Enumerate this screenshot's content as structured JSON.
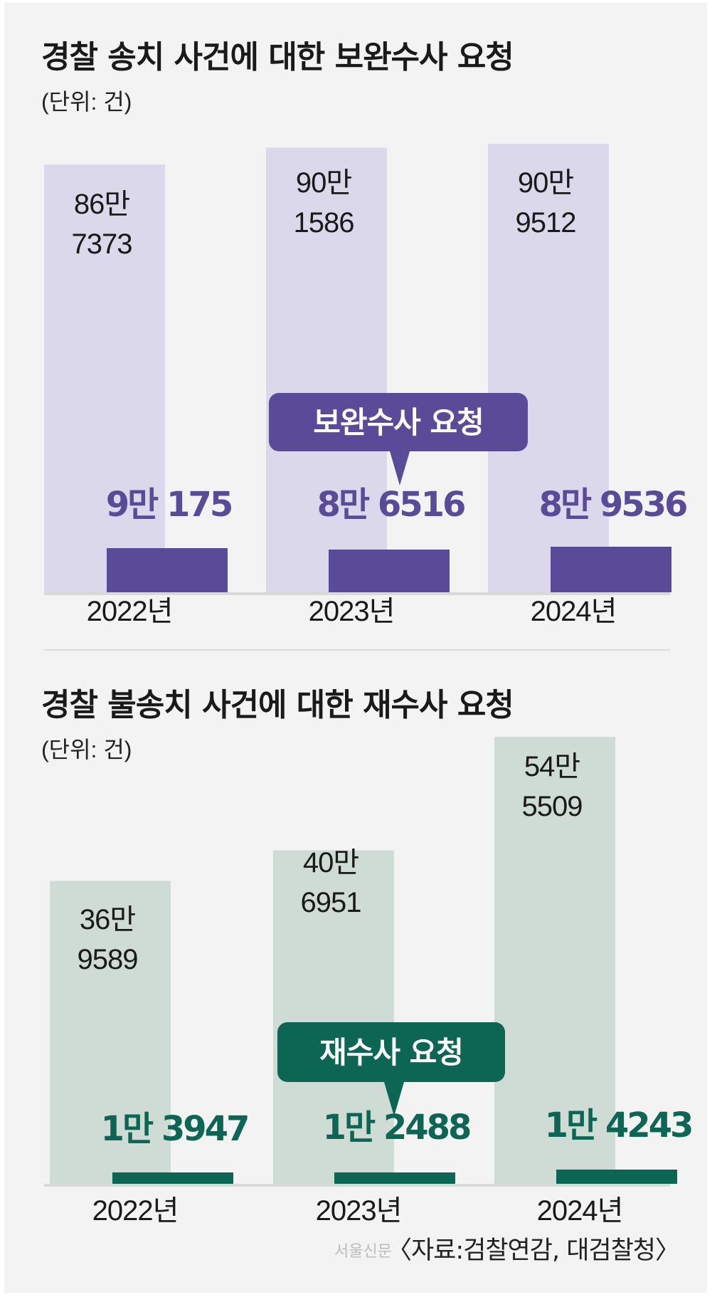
{
  "chart_data": [
    {
      "type": "bar",
      "title": "경찰 송치 사건에 대한 보완수사 요청",
      "unit_label": "(단위: 건)",
      "categories": [
        "2022년",
        "2023년",
        "2024년"
      ],
      "series": [
        {
          "values": [
            867373,
            901586,
            909512
          ],
          "labels": [
            [
              "86만",
              "7373"
            ],
            [
              "90만",
              "1586"
            ],
            [
              "90만",
              "9512"
            ]
          ]
        },
        {
          "name": "보완수사 요청",
          "values": [
            90175,
            86516,
            89536
          ],
          "labels": [
            "9만 175",
            "8만 6516",
            "8만 9536"
          ]
        }
      ],
      "colors": {
        "total": "#dcd8ec",
        "request": "#5a4b98"
      }
    },
    {
      "type": "bar",
      "title": "경찰 불송치 사건에 대한 재수사 요청",
      "unit_label": "(단위: 건)",
      "categories": [
        "2022년",
        "2023년",
        "2024년"
      ],
      "series": [
        {
          "values": [
            369589,
            406951,
            545509
          ],
          "labels": [
            [
              "36만",
              "9589"
            ],
            [
              "40만",
              "6951"
            ],
            [
              "54만",
              "5509"
            ]
          ]
        },
        {
          "name": "재수사 요청",
          "values": [
            13947,
            12488,
            14243
          ],
          "labels": [
            "1만 3947",
            "1만 2488",
            "1만 4243"
          ]
        }
      ],
      "colors": {
        "total": "#cfdbd5",
        "request": "#0d6553"
      }
    }
  ],
  "source": "〈자료:검찰연감, 대검찰청〉",
  "watermark": "서울신문"
}
